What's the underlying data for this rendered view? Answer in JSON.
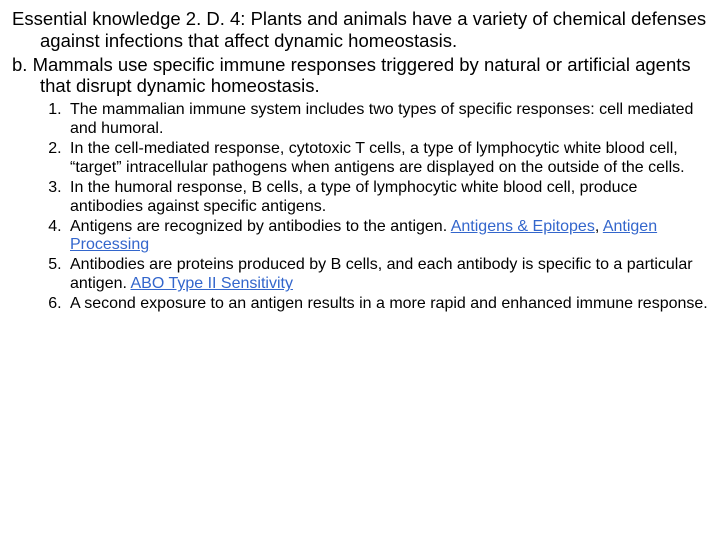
{
  "header": {
    "title_text": "Essential knowledge 2. D. 4: Plants and animals have a variety of chemical defenses against infections that affect dynamic homeostasis."
  },
  "section_b": {
    "text": "b. Mammals use specific immune responses triggered by natural or artificial agents that disrupt dynamic homeostasis."
  },
  "items": {
    "i1": "The mammalian immune system includes two types of specific responses: cell mediated and humoral.",
    "i2": "In the cell-mediated response, cytotoxic T cells, a type of lymphocytic white blood cell, “target” intracellular pathogens when antigens are displayed on the outside of the cells.",
    "i3": "In the humoral response, B cells, a type of lymphocytic white blood cell, produce antibodies against specific antigens.",
    "i4_pre": "Antigens are recognized by antibodies to the antigen. ",
    "i4_link1": "Antigens & Epitopes",
    "i4_sep": ", ",
    "i4_link2": "Antigen Processing",
    "i5_pre": "Antibodies are proteins produced by B cells, and each antibody is specific to a particular antigen. ",
    "i5_link": "ABO Type II Sensitivity",
    "i6": "A second exposure to an antigen results in a more rapid and enhanced immune response."
  },
  "colors": {
    "link": "#3366cc",
    "text": "#000000",
    "bg": "#ffffff"
  }
}
